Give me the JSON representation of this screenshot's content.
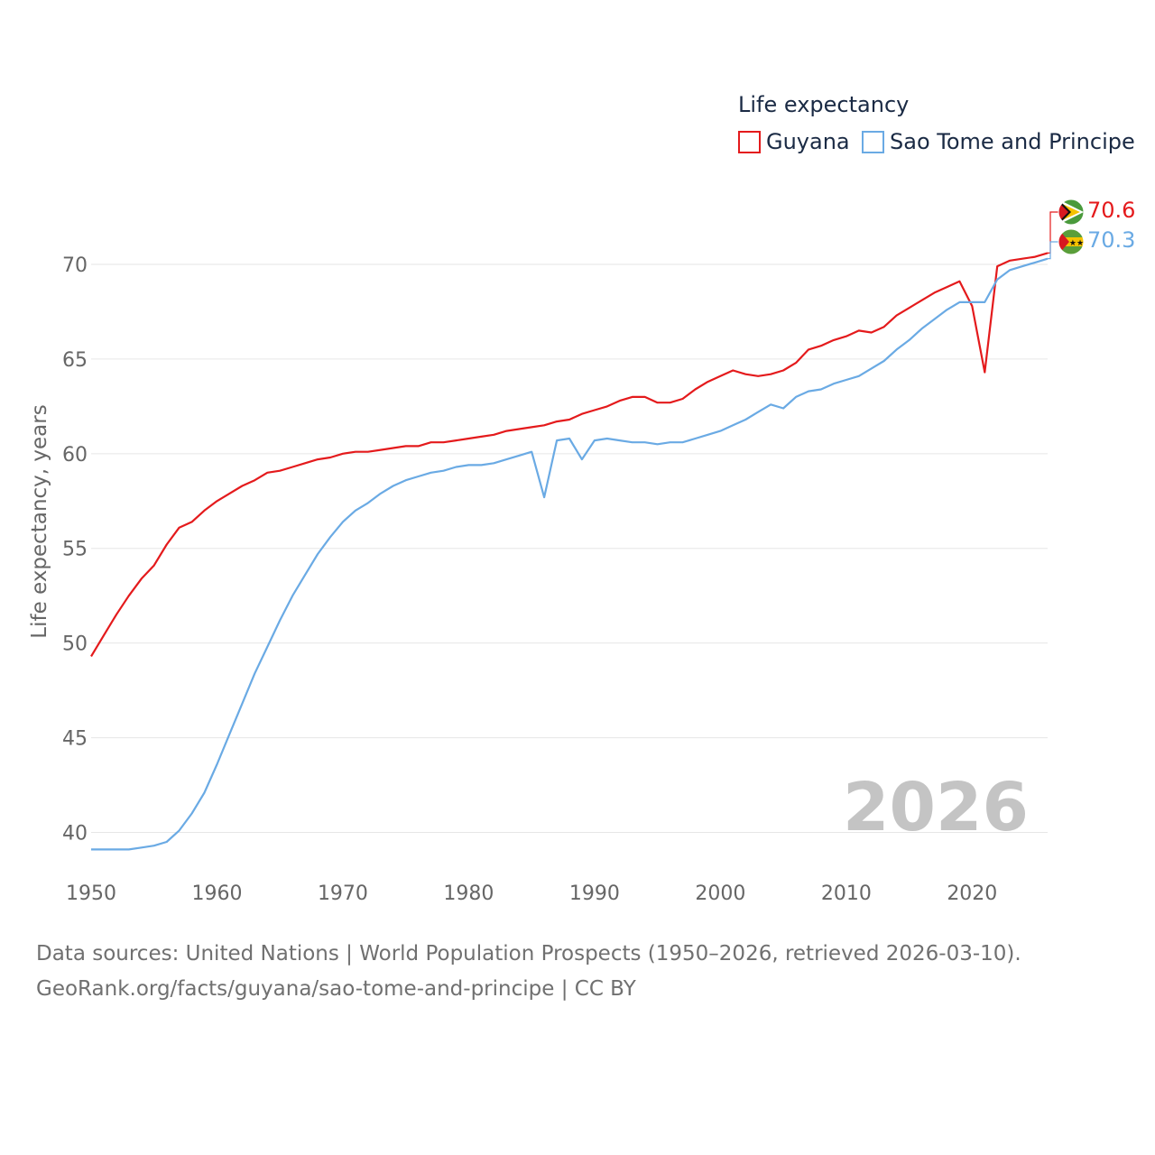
{
  "chart_data": {
    "type": "line",
    "legend_title": "Life expectancy",
    "ylabel": "Life expectancy, years",
    "xlim": [
      1950,
      2026
    ],
    "ylim": [
      37.5,
      73
    ],
    "x_ticks": [
      1950,
      1960,
      1970,
      1980,
      1990,
      2000,
      2010,
      2020
    ],
    "y_ticks": [
      40,
      45,
      50,
      55,
      60,
      65,
      70
    ],
    "grid": true,
    "legend_position": "top-right",
    "year_watermark": "2026",
    "x": [
      1950,
      1951,
      1952,
      1953,
      1954,
      1955,
      1956,
      1957,
      1958,
      1959,
      1960,
      1961,
      1962,
      1963,
      1964,
      1965,
      1966,
      1967,
      1968,
      1969,
      1970,
      1971,
      1972,
      1973,
      1974,
      1975,
      1976,
      1977,
      1978,
      1979,
      1980,
      1981,
      1982,
      1983,
      1984,
      1985,
      1986,
      1987,
      1988,
      1989,
      1990,
      1991,
      1992,
      1993,
      1994,
      1995,
      1996,
      1997,
      1998,
      1999,
      2000,
      2001,
      2002,
      2003,
      2004,
      2005,
      2006,
      2007,
      2008,
      2009,
      2010,
      2011,
      2012,
      2013,
      2014,
      2015,
      2016,
      2017,
      2018,
      2019,
      2020,
      2021,
      2022,
      2023,
      2024,
      2025,
      2026
    ],
    "series": [
      {
        "name": "Guyana",
        "color": "#e41a1c",
        "end_label": "70.6",
        "flag_icon": "guyana-flag-icon",
        "values": [
          49.3,
          50.4,
          51.5,
          52.5,
          53.4,
          54.1,
          55.2,
          56.1,
          56.4,
          57.0,
          57.5,
          57.9,
          58.3,
          58.6,
          59.0,
          59.1,
          59.3,
          59.5,
          59.7,
          59.8,
          60.0,
          60.1,
          60.1,
          60.2,
          60.3,
          60.4,
          60.4,
          60.6,
          60.6,
          60.7,
          60.8,
          60.9,
          61.0,
          61.2,
          61.3,
          61.4,
          61.5,
          61.7,
          61.8,
          62.1,
          62.3,
          62.5,
          62.8,
          63.0,
          63.0,
          62.7,
          62.7,
          62.9,
          63.4,
          63.8,
          64.1,
          64.4,
          64.2,
          64.1,
          64.2,
          64.4,
          64.8,
          65.5,
          65.7,
          66.0,
          66.2,
          66.5,
          66.4,
          66.7,
          67.3,
          67.7,
          68.1,
          68.5,
          68.8,
          69.1,
          67.8,
          64.3,
          69.9,
          70.2,
          70.3,
          70.4,
          70.6
        ]
      },
      {
        "name": "Sao Tome and Principe",
        "color": "#6aaae4",
        "end_label": "70.3",
        "flag_icon": "sao-tome-flag-icon",
        "values": [
          39.1,
          39.1,
          39.1,
          39.1,
          39.2,
          39.3,
          39.5,
          40.1,
          41.0,
          42.1,
          43.6,
          45.2,
          46.8,
          48.4,
          49.8,
          51.2,
          52.5,
          53.6,
          54.7,
          55.6,
          56.4,
          57.0,
          57.4,
          57.9,
          58.3,
          58.6,
          58.8,
          59.0,
          59.1,
          59.3,
          59.4,
          59.4,
          59.5,
          59.7,
          59.9,
          60.1,
          57.7,
          60.7,
          60.8,
          59.7,
          60.7,
          60.8,
          60.7,
          60.6,
          60.6,
          60.5,
          60.6,
          60.6,
          60.8,
          61.0,
          61.2,
          61.5,
          61.8,
          62.2,
          62.6,
          62.4,
          63.0,
          63.3,
          63.4,
          63.7,
          63.9,
          64.1,
          64.5,
          64.9,
          65.5,
          66.0,
          66.6,
          67.1,
          67.6,
          68.0,
          68.0,
          68.0,
          69.2,
          69.7,
          69.9,
          70.1,
          70.3
        ]
      }
    ]
  },
  "footer": {
    "sources": "Data sources: United Nations | World Population Prospects (1950–2026, retrieved 2026-03-10).",
    "url": "GeoRank.org/facts/guyana/sao-tome-and-principe | CC BY"
  }
}
